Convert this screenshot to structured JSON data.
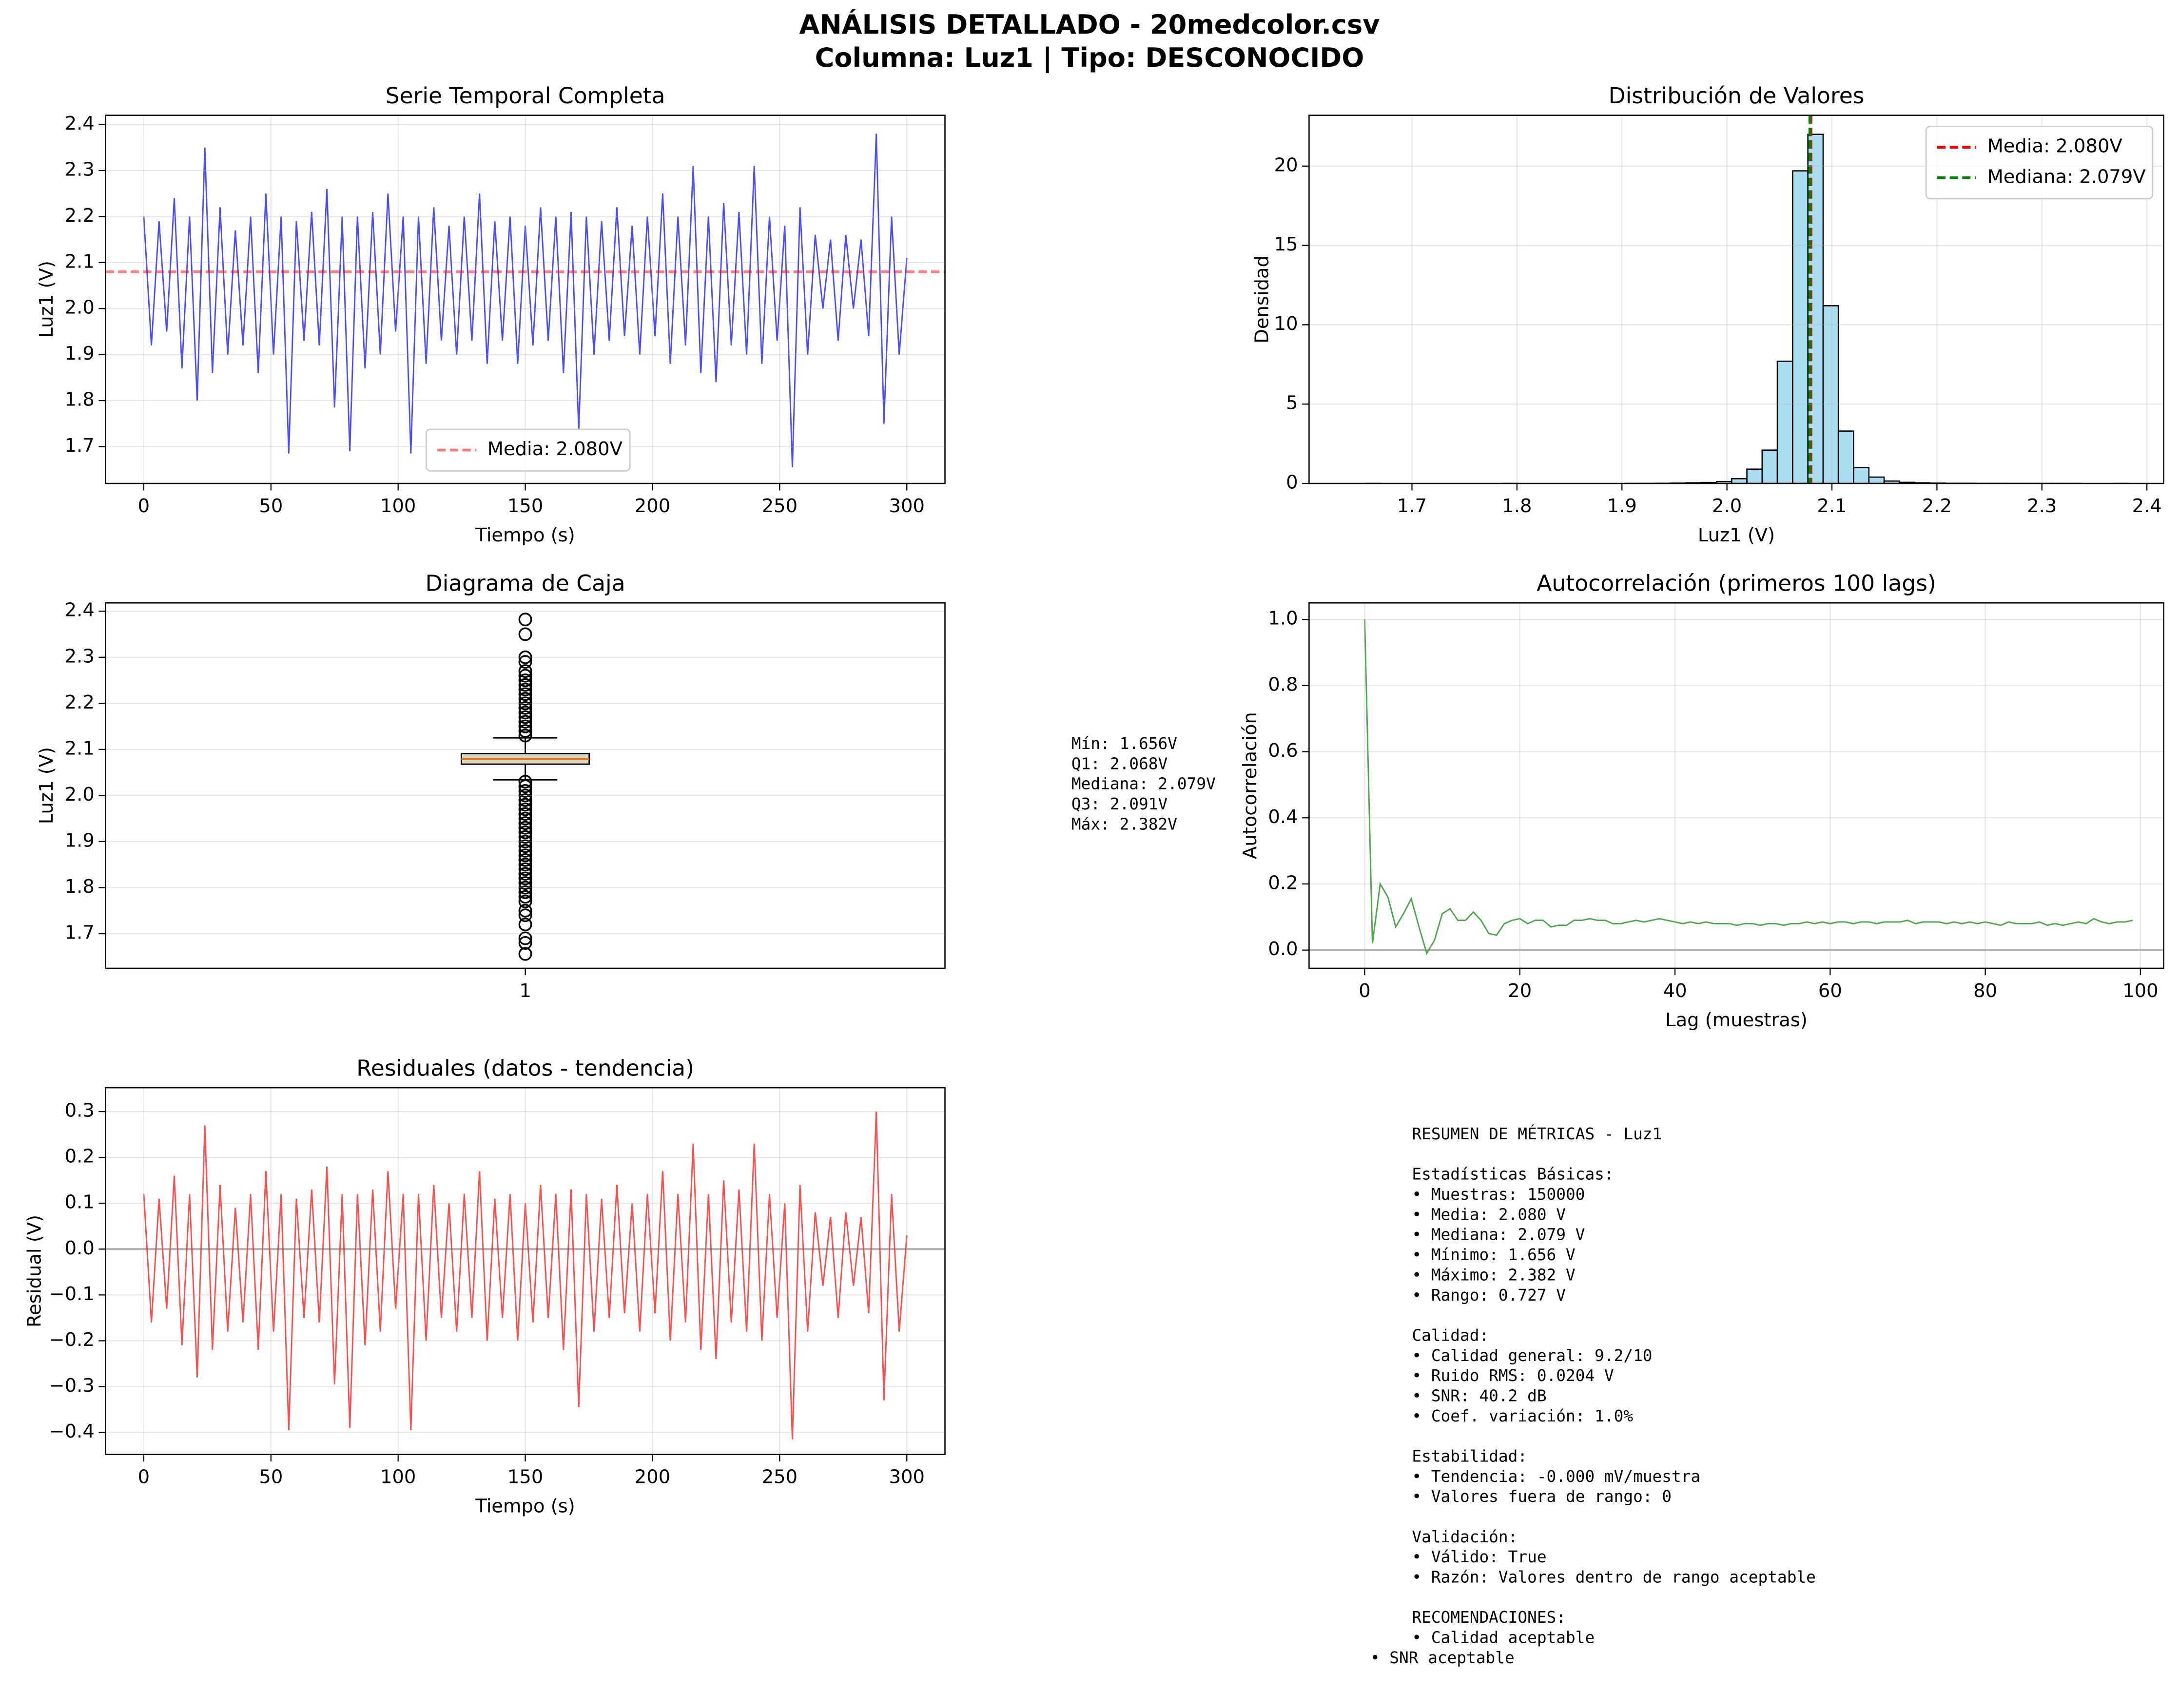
{
  "title": [
    "ANÁLISIS DETALLADO - 20medcolor.csv",
    "Columna: Luz1 | Tipo: DESCONOCIDO"
  ],
  "chart_data": [
    {
      "type": "line",
      "title": "Serie Temporal Completa",
      "xlabel": "Tiempo (s)",
      "ylabel": "Luz1 (V)",
      "color": "#0000ff",
      "grid": true,
      "x": [
        0,
        3,
        6,
        9,
        12,
        15,
        18,
        21,
        24,
        27,
        30,
        33,
        36,
        39,
        42,
        45,
        48,
        51,
        54,
        57,
        60,
        63,
        66,
        69,
        72,
        75,
        78,
        81,
        84,
        87,
        90,
        93,
        96,
        99,
        102,
        105,
        108,
        111,
        114,
        117,
        120,
        123,
        126,
        129,
        132,
        135,
        138,
        141,
        144,
        147,
        150,
        153,
        156,
        159,
        162,
        165,
        168,
        171,
        174,
        177,
        180,
        183,
        186,
        189,
        192,
        195,
        198,
        201,
        204,
        207,
        210,
        213,
        216,
        219,
        222,
        225,
        228,
        231,
        234,
        237,
        240,
        243,
        246,
        249,
        252,
        255,
        258,
        261,
        264,
        267,
        270,
        273,
        276,
        279,
        282,
        285,
        288,
        291,
        294,
        297,
        300
      ],
      "values": [
        2.2,
        1.92,
        2.19,
        1.95,
        2.24,
        1.87,
        2.2,
        1.8,
        2.35,
        1.86,
        2.22,
        1.9,
        2.17,
        1.92,
        2.2,
        1.86,
        2.25,
        1.9,
        2.2,
        1.685,
        2.19,
        1.93,
        2.21,
        1.92,
        2.26,
        1.785,
        2.2,
        1.69,
        2.2,
        1.87,
        2.21,
        1.9,
        2.25,
        1.95,
        2.2,
        1.685,
        2.2,
        1.88,
        2.22,
        1.93,
        2.18,
        1.9,
        2.2,
        1.93,
        2.25,
        1.88,
        2.19,
        1.93,
        2.2,
        1.88,
        2.18,
        1.92,
        2.22,
        1.93,
        2.2,
        1.86,
        2.21,
        1.735,
        2.2,
        1.9,
        2.19,
        1.93,
        2.22,
        1.94,
        2.18,
        1.9,
        2.2,
        1.94,
        2.25,
        1.88,
        2.2,
        1.92,
        2.31,
        1.86,
        2.2,
        1.84,
        2.23,
        1.92,
        2.21,
        1.9,
        2.31,
        1.88,
        2.2,
        1.93,
        2.18,
        1.655,
        2.22,
        1.9,
        2.16,
        2.0,
        2.15,
        1.93,
        2.16,
        2.0,
        2.15,
        1.94,
        2.38,
        1.75,
        2.2,
        1.9,
        2.11
      ],
      "reference_lines": [
        {
          "value": 2.08,
          "label": "Media: 2.080V",
          "color": "#ff0000"
        }
      ],
      "legend": "lower center",
      "xlim": [
        -15,
        315
      ],
      "xticks": [
        0,
        50,
        100,
        150,
        200,
        250,
        300
      ],
      "ylim": [
        1.62,
        2.42
      ],
      "yticks": [
        1.7,
        1.8,
        1.9,
        {
          "value": 2.0,
          "label": "2.0"
        },
        2.1,
        2.2,
        2.3,
        2.4
      ]
    },
    {
      "type": "histogram",
      "title": "Distribución de Valores",
      "xlabel": "Luz1 (V)",
      "ylabel": "Densidad",
      "color": "#87ceeb",
      "grid": true,
      "bins": [
        1.656,
        1.6705,
        1.685,
        1.6996,
        1.7141,
        1.7286,
        1.7431,
        1.7576,
        1.7722,
        1.7867,
        1.8012,
        1.8157,
        1.8302,
        1.8448,
        1.8593,
        1.8738,
        1.8883,
        1.9028,
        1.9174,
        1.9319,
        1.9464,
        1.9609,
        1.9754,
        1.99,
        2.0045,
        2.019,
        2.0335,
        2.048,
        2.0626,
        2.0771,
        2.0916,
        2.1061,
        2.1206,
        2.1352,
        2.1497,
        2.1642,
        2.1787,
        2.1932,
        2.2078,
        2.2223,
        2.2368,
        2.2513,
        2.2658,
        2.2804,
        2.2949,
        2.3094,
        2.3239,
        2.3384,
        2.353,
        2.3675,
        2.382
      ],
      "values": [
        0.002,
        0,
        0,
        0,
        0,
        0,
        0,
        0,
        0,
        0.002,
        0,
        0,
        0,
        0,
        0,
        0,
        0,
        0.003,
        0.005,
        0.01,
        0.02,
        0.04,
        0.06,
        0.12,
        0.3,
        0.9,
        2.1,
        7.7,
        19.7,
        22.0,
        11.2,
        3.3,
        1.0,
        0.4,
        0.15,
        0.07,
        0.04,
        0.02,
        0.01,
        0.01,
        0.005,
        0.005,
        0.003,
        0.002,
        0.002,
        0.001,
        0.001,
        0,
        0,
        0.001
      ],
      "reference_lines": [
        {
          "value": 2.08,
          "label": "Media: 2.080V",
          "color": "#ff0000"
        },
        {
          "value": 2.079,
          "label": "Mediana: 2.079V",
          "color": "#008000"
        }
      ],
      "legend": "upper right",
      "xlim": [
        1.602,
        2.416
      ],
      "xticks": [
        1.7,
        1.8,
        1.9,
        {
          "value": 2.0,
          "label": "2.0"
        },
        2.1,
        2.2,
        2.3,
        2.4
      ],
      "ylim": [
        0,
        23.2
      ],
      "yticks": [
        0,
        5,
        10,
        15,
        20
      ]
    },
    {
      "type": "box",
      "title": "Diagrama de Caja",
      "ylabel": "Luz1 (V)",
      "categories": [
        "1"
      ],
      "grid": "y",
      "color": "#d8d8c0",
      "whislo": 2.034,
      "q1": 2.068,
      "median": 2.079,
      "q3": 2.091,
      "whishi": 2.125,
      "fliers": [
        2.13,
        2.14,
        2.15,
        2.16,
        2.17,
        2.18,
        2.19,
        2.2,
        2.21,
        2.22,
        2.23,
        2.24,
        2.25,
        2.26,
        2.27,
        2.29,
        2.3,
        2.35,
        2.382,
        2.03,
        2.02,
        2.01,
        2.0,
        1.99,
        1.98,
        1.97,
        1.96,
        1.95,
        1.94,
        1.93,
        1.92,
        1.91,
        1.9,
        1.89,
        1.88,
        1.87,
        1.86,
        1.85,
        1.84,
        1.83,
        1.82,
        1.81,
        1.8,
        1.79,
        1.78,
        1.77,
        1.75,
        1.74,
        1.72,
        1.69,
        1.68,
        1.656
      ],
      "ylim": [
        1.625,
        2.418
      ],
      "yticks": [
        1.7,
        1.8,
        1.9,
        {
          "value": 2.0,
          "label": "2.0"
        },
        2.1,
        2.2,
        2.3,
        2.4
      ],
      "annotation_lines": [
        "Mín: 1.656V",
        "Q1: 2.068V",
        "Mediana: 2.079V",
        "Q3: 2.091V",
        "Máx: 2.382V"
      ]
    },
    {
      "type": "line",
      "title": "Autocorrelación (primeros 100 lags)",
      "xlabel": "Lag (muestras)",
      "ylabel": "Autocorrelación",
      "color": "#008000",
      "grid": true,
      "hline": 0,
      "x": [
        0,
        1,
        2,
        3,
        4,
        5,
        6,
        7,
        8,
        9,
        10,
        11,
        12,
        13,
        14,
        15,
        16,
        17,
        18,
        19,
        20,
        21,
        22,
        23,
        24,
        25,
        26,
        27,
        28,
        29,
        30,
        31,
        32,
        33,
        34,
        35,
        36,
        37,
        38,
        39,
        40,
        41,
        42,
        43,
        44,
        45,
        46,
        47,
        48,
        49,
        50,
        51,
        52,
        53,
        54,
        55,
        56,
        57,
        58,
        59,
        60,
        61,
        62,
        63,
        64,
        65,
        66,
        67,
        68,
        69,
        70,
        71,
        72,
        73,
        74,
        75,
        76,
        77,
        78,
        79,
        80,
        81,
        82,
        83,
        84,
        85,
        86,
        87,
        88,
        89,
        90,
        91,
        92,
        93,
        94,
        95,
        96,
        97,
        98,
        99
      ],
      "values": [
        1.0,
        0.02,
        0.2,
        0.16,
        0.07,
        0.11,
        0.155,
        0.07,
        -0.01,
        0.03,
        0.11,
        0.125,
        0.09,
        0.09,
        0.115,
        0.09,
        0.05,
        0.045,
        0.08,
        0.09,
        0.095,
        0.08,
        0.09,
        0.09,
        0.07,
        0.075,
        0.075,
        0.09,
        0.09,
        0.095,
        0.09,
        0.09,
        0.08,
        0.08,
        0.085,
        0.09,
        0.085,
        0.09,
        0.095,
        0.09,
        0.085,
        0.08,
        0.085,
        0.08,
        0.085,
        0.08,
        0.08,
        0.08,
        0.075,
        0.08,
        0.08,
        0.075,
        0.08,
        0.08,
        0.075,
        0.08,
        0.08,
        0.085,
        0.08,
        0.085,
        0.08,
        0.085,
        0.085,
        0.08,
        0.085,
        0.085,
        0.08,
        0.085,
        0.085,
        0.085,
        0.09,
        0.08,
        0.085,
        0.085,
        0.085,
        0.08,
        0.085,
        0.08,
        0.085,
        0.08,
        0.085,
        0.08,
        0.075,
        0.085,
        0.08,
        0.08,
        0.08,
        0.085,
        0.075,
        0.08,
        0.075,
        0.08,
        0.085,
        0.08,
        0.095,
        0.085,
        0.08,
        0.085,
        0.085,
        0.09
      ],
      "xlim": [
        -7.17,
        103
      ],
      "xticks": [
        0,
        20,
        40,
        60,
        80,
        100
      ],
      "ylim": [
        -0.055,
        1.05
      ],
      "yticks": [
        {
          "value": 0,
          "label": "0.0"
        },
        0.2,
        0.4,
        0.6,
        0.8,
        {
          "value": 1,
          "label": "1.0"
        }
      ]
    },
    {
      "type": "line",
      "title": "Residuales (datos - tendencia)",
      "xlabel": "Tiempo (s)",
      "ylabel": "Residual (V)",
      "color": "#ff0000",
      "grid": true,
      "hline": 0,
      "x": [
        0,
        3,
        6,
        9,
        12,
        15,
        18,
        21,
        24,
        27,
        30,
        33,
        36,
        39,
        42,
        45,
        48,
        51,
        54,
        57,
        60,
        63,
        66,
        69,
        72,
        75,
        78,
        81,
        84,
        87,
        90,
        93,
        96,
        99,
        102,
        105,
        108,
        111,
        114,
        117,
        120,
        123,
        126,
        129,
        132,
        135,
        138,
        141,
        144,
        147,
        150,
        153,
        156,
        159,
        162,
        165,
        168,
        171,
        174,
        177,
        180,
        183,
        186,
        189,
        192,
        195,
        198,
        201,
        204,
        207,
        210,
        213,
        216,
        219,
        222,
        225,
        228,
        231,
        234,
        237,
        240,
        243,
        246,
        249,
        252,
        255,
        258,
        261,
        264,
        267,
        270,
        273,
        276,
        279,
        282,
        285,
        288,
        291,
        294,
        297,
        300
      ],
      "values": [
        0.12,
        -0.16,
        0.11,
        -0.13,
        0.16,
        -0.21,
        0.12,
        -0.28,
        0.27,
        -0.22,
        0.14,
        -0.18,
        0.09,
        -0.16,
        0.12,
        -0.22,
        0.17,
        -0.18,
        0.12,
        -0.395,
        0.11,
        -0.15,
        0.13,
        -0.16,
        0.18,
        -0.295,
        0.12,
        -0.39,
        0.12,
        -0.21,
        0.13,
        -0.18,
        0.17,
        -0.13,
        0.12,
        -0.395,
        0.12,
        -0.2,
        0.14,
        -0.15,
        0.1,
        -0.18,
        0.12,
        -0.15,
        0.17,
        -0.2,
        0.11,
        -0.15,
        0.12,
        -0.2,
        0.1,
        -0.16,
        0.14,
        -0.15,
        0.12,
        -0.22,
        0.13,
        -0.345,
        0.12,
        -0.18,
        0.11,
        -0.15,
        0.14,
        -0.14,
        0.1,
        -0.18,
        0.12,
        -0.14,
        0.17,
        -0.2,
        0.12,
        -0.16,
        0.23,
        -0.22,
        0.12,
        -0.24,
        0.15,
        -0.16,
        0.13,
        -0.18,
        0.23,
        -0.2,
        0.12,
        -0.15,
        0.1,
        -0.415,
        0.14,
        -0.18,
        0.08,
        -0.08,
        0.07,
        -0.15,
        0.08,
        -0.08,
        0.07,
        -0.14,
        0.3,
        -0.33,
        0.12,
        -0.18,
        0.03
      ],
      "xlim": [
        -15,
        315
      ],
      "xticks": [
        0,
        50,
        100,
        150,
        200,
        250,
        300
      ],
      "ylim": [
        -0.448,
        0.352
      ],
      "yticks": [
        {
          "value": -0.4,
          "label": "−0.4"
        },
        {
          "value": -0.3,
          "label": "−0.3"
        },
        {
          "value": -0.2,
          "label": "−0.2"
        },
        {
          "value": -0.1,
          "label": "−0.1"
        },
        {
          "value": 0,
          "label": "0.0"
        },
        0.1,
        0.2,
        0.3
      ]
    }
  ],
  "summary": [
    [
      "RESUMEN DE MÉTRICAS - Luz1"
    ],
    [
      "Estadísticas Básicas:",
      "• Muestras: 150000",
      "• Media: 2.080 V",
      "• Mediana: 2.079 V",
      "• Mínimo: 1.656 V",
      "• Máximo: 2.382 V",
      "• Rango: 0.727 V"
    ],
    [
      "Calidad:",
      "• Calidad general: 9.2/10",
      "• Ruido RMS: 0.0204 V",
      "• SNR: 40.2 dB",
      "• Coef. variación: 1.0%"
    ],
    [
      "Estabilidad:",
      "• Tendencia: -0.000 mV/muestra",
      "• Valores fuera de rango: 0"
    ],
    [
      "Validación:",
      "• Válido: True",
      "• Razón: Valores dentro de rango aceptable"
    ],
    [
      "RECOMENDACIONES:",
      "• Calidad aceptable",
      "• SNR aceptable"
    ]
  ]
}
